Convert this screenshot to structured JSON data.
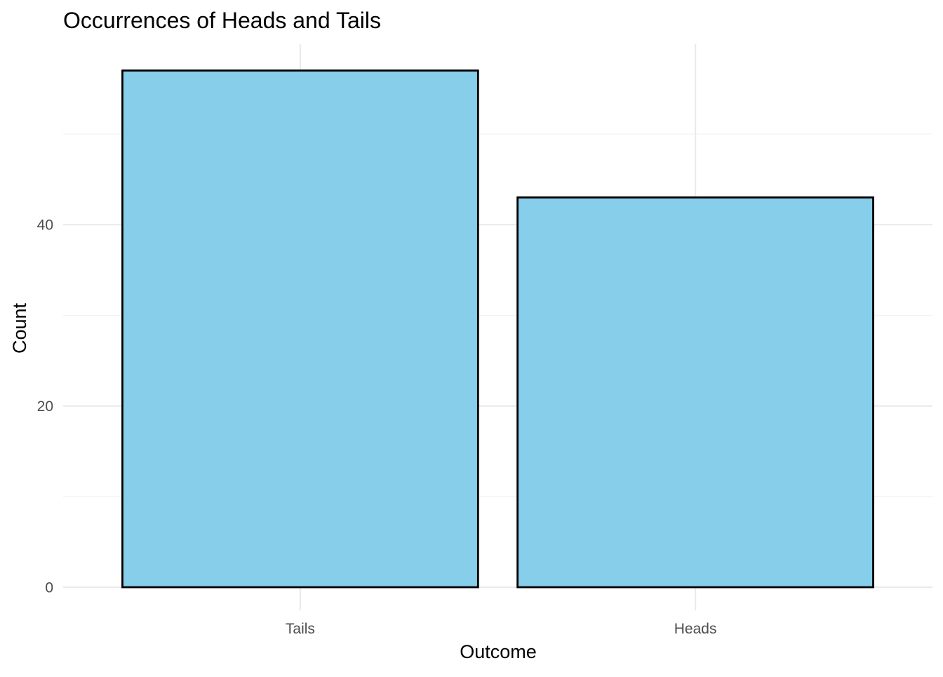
{
  "chart_data": {
    "type": "bar",
    "title": "Occurrences of Heads and Tails",
    "xlabel": "Outcome",
    "ylabel": "Count",
    "categories": [
      "Tails",
      "Heads"
    ],
    "values": [
      57,
      43
    ],
    "ylim": [
      0,
      57
    ],
    "y_ticks": [
      0,
      20,
      40
    ],
    "y_tick_labels": [
      "0",
      "20",
      "40"
    ],
    "grid": true,
    "legend": "none",
    "colors": {
      "bar_fill": "#87CEEB",
      "bar_outline": "#000000",
      "grid_major": "#EBEBEB",
      "grid_minor": "#F2F2F2",
      "tick_text": "#4D4D4D",
      "text": "#000000"
    }
  }
}
